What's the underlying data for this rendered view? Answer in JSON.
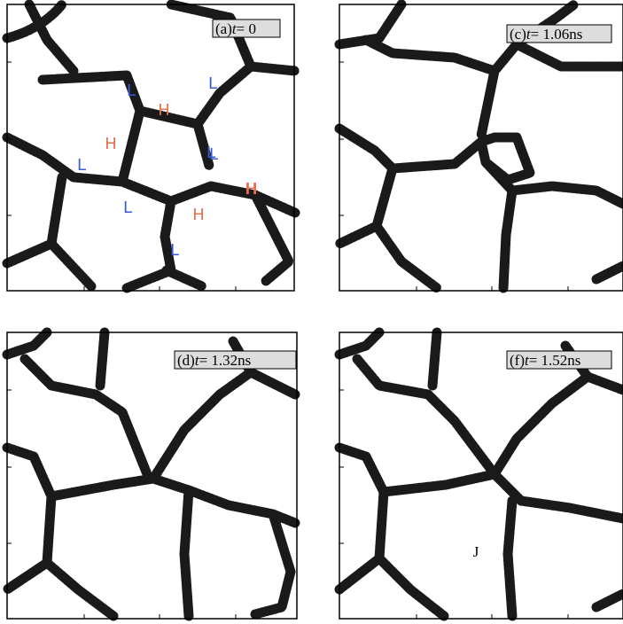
{
  "panels": [
    {
      "tag": "(a)",
      "var": "t",
      "value": "= 0",
      "markers": [
        "L",
        "L",
        "H",
        "H",
        "L",
        "L",
        "H",
        "L",
        "L",
        "H",
        "H",
        "L"
      ]
    },
    {
      "tag": "(c)",
      "var": "t",
      "value": "= 1.06ns"
    },
    {
      "tag": "(d)",
      "var": "t",
      "value": "= 1.32ns"
    },
    {
      "tag": "(f)",
      "var": "t",
      "value": "= 1.52ns",
      "markers": [
        "J"
      ]
    }
  ]
}
